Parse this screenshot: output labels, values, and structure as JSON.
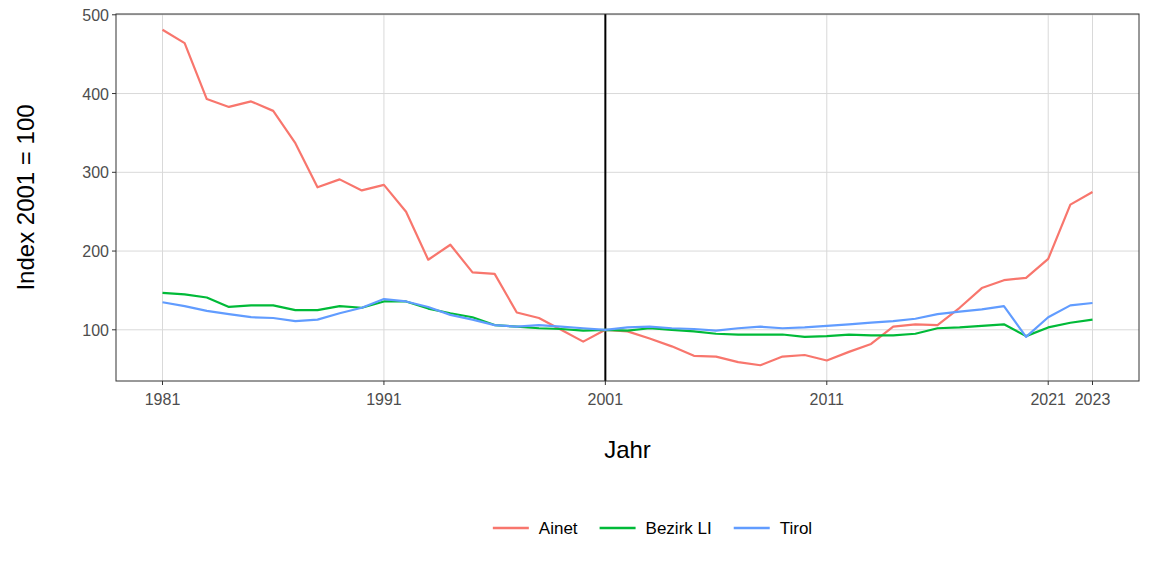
{
  "chart_data": {
    "type": "line",
    "x_label": "Jahr",
    "y_label": "Index 2001 = 100",
    "x": [
      1981,
      1982,
      1983,
      1984,
      1985,
      1986,
      1987,
      1988,
      1989,
      1990,
      1991,
      1992,
      1993,
      1994,
      1995,
      1996,
      1997,
      1998,
      1999,
      2000,
      2001,
      2002,
      2003,
      2004,
      2005,
      2006,
      2007,
      2008,
      2009,
      2010,
      2011,
      2012,
      2013,
      2014,
      2015,
      2016,
      2017,
      2018,
      2019,
      2020,
      2021,
      2022,
      2023
    ],
    "series": [
      {
        "name": "Ainet",
        "color": "#F8766D",
        "values": [
          481,
          464,
          393,
          383,
          390,
          378,
          337,
          281,
          291,
          277,
          284,
          250,
          189,
          208,
          173,
          171,
          122,
          115,
          100,
          85,
          100,
          98,
          89,
          79,
          67,
          66,
          59,
          55,
          66,
          68,
          61,
          72,
          82,
          104,
          107,
          106,
          128,
          153,
          163,
          166,
          190,
          259,
          275
        ]
      },
      {
        "name": "Bezirk LI",
        "color": "#00BA38",
        "values": [
          147,
          145,
          141,
          129,
          131,
          131,
          125,
          125,
          130,
          128,
          136,
          136,
          127,
          121,
          116,
          106,
          104,
          102,
          101,
          99,
          100,
          99,
          102,
          100,
          98,
          95,
          94,
          94,
          94,
          91,
          92,
          94,
          93,
          93,
          95,
          102,
          103,
          105,
          107,
          92,
          103,
          109,
          113
        ]
      },
      {
        "name": "Tirol",
        "color": "#619CFF",
        "values": [
          135,
          130,
          124,
          120,
          116,
          115,
          111,
          113,
          121,
          128,
          139,
          136,
          129,
          119,
          113,
          106,
          104,
          106,
          104,
          102,
          100,
          103,
          104,
          102,
          101,
          99,
          102,
          104,
          102,
          103,
          105,
          107,
          109,
          111,
          114,
          120,
          123,
          126,
          130,
          91,
          116,
          131,
          134
        ]
      }
    ],
    "vline": 2001,
    "xlim": [
      1978.9,
      2025.1
    ],
    "xticks": [
      1981,
      1991,
      2001,
      2011,
      2021,
      2023
    ],
    "ylim": [
      35,
      501
    ],
    "yticks": [
      100,
      200,
      300,
      400,
      500
    ],
    "grid": true,
    "legend": "bottom"
  }
}
